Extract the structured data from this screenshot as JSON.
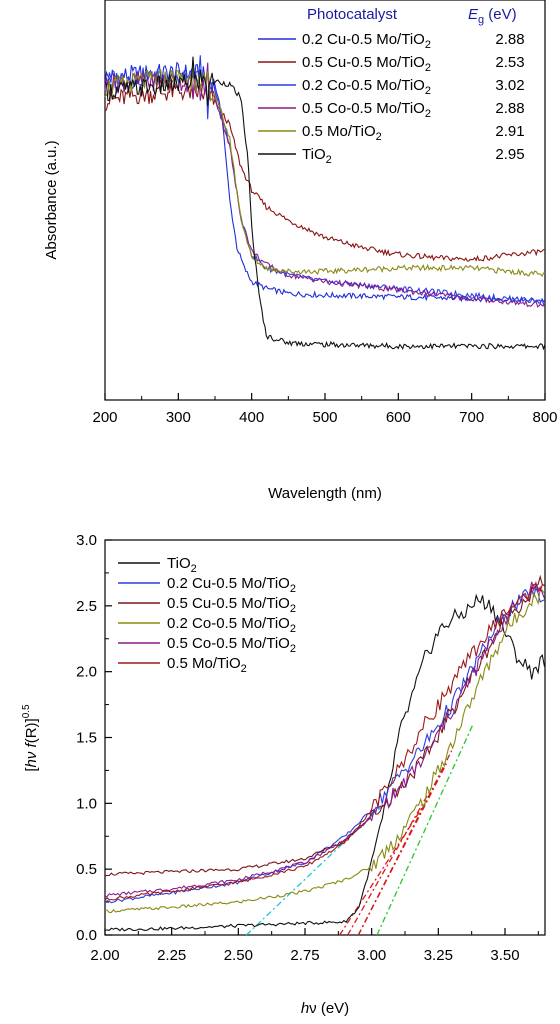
{
  "chart_data": [
    {
      "type": "line",
      "xlabel": "Wavelength (nm)",
      "ylabel": "Absorbance (a.u.)",
      "xlim": [
        200,
        800
      ],
      "xticks": [
        "200",
        "300",
        "400",
        "500",
        "600",
        "700",
        "800"
      ],
      "y_ticks_shown": false,
      "grid": false,
      "legend": {
        "placement": "top-right",
        "header_left": "Photocatalyst",
        "header_right_symbol": "E",
        "header_right_sub": "g",
        "header_right_unit": " (eV)",
        "header_color": "#1a1aa0"
      },
      "series": [
        {
          "name": "0.2 Cu-0.5 Mo/TiO",
          "sub": "2",
          "eg": "2.88",
          "color": "#1f2fd8",
          "x": [
            200,
            250,
            300,
            330,
            350,
            360,
            370,
            380,
            390,
            400,
            420,
            450,
            500,
            600,
            700,
            800
          ],
          "y": [
            0.86,
            0.87,
            0.875,
            0.87,
            0.84,
            0.74,
            0.5,
            0.36,
            0.3,
            0.26,
            0.24,
            0.225,
            0.22,
            0.215,
            0.21,
            0.205
          ]
        },
        {
          "name": "0.5 Cu-0.5 Mo/TiO",
          "sub": "2",
          "eg": "2.53",
          "color": "#8a1414",
          "x": [
            200,
            250,
            300,
            330,
            350,
            370,
            385,
            400,
            420,
            450,
            500,
            550,
            600,
            650,
            700,
            800
          ],
          "y": [
            0.79,
            0.81,
            0.82,
            0.815,
            0.79,
            0.72,
            0.6,
            0.53,
            0.48,
            0.44,
            0.39,
            0.36,
            0.34,
            0.33,
            0.325,
            0.35
          ]
        },
        {
          "name": "0.2 Co-0.5 Mo/TiO",
          "sub": "2",
          "eg": "3.02",
          "color": "#2a3fe0",
          "x": [
            200,
            250,
            300,
            330,
            350,
            370,
            385,
            400,
            420,
            450,
            500,
            600,
            700,
            800
          ],
          "y": [
            0.85,
            0.86,
            0.86,
            0.85,
            0.82,
            0.66,
            0.45,
            0.34,
            0.3,
            0.28,
            0.26,
            0.24,
            0.22,
            0.2
          ]
        },
        {
          "name": "0.5 Co-0.5 Mo/TiO",
          "sub": "2",
          "eg": "2.88",
          "color": "#8a1a8e",
          "x": [
            200,
            250,
            300,
            330,
            350,
            370,
            385,
            400,
            420,
            450,
            500,
            600,
            700,
            800
          ],
          "y": [
            0.84,
            0.85,
            0.85,
            0.84,
            0.8,
            0.66,
            0.45,
            0.35,
            0.31,
            0.28,
            0.26,
            0.235,
            0.21,
            0.19
          ]
        },
        {
          "name": "0.5 Mo/TiO",
          "sub": "2",
          "eg": "2.91",
          "color": "#8a8a14",
          "x": [
            200,
            250,
            300,
            330,
            350,
            370,
            385,
            400,
            420,
            450,
            500,
            550,
            600,
            650,
            700,
            800
          ],
          "y": [
            0.83,
            0.85,
            0.86,
            0.85,
            0.81,
            0.68,
            0.45,
            0.33,
            0.3,
            0.29,
            0.29,
            0.295,
            0.3,
            0.3,
            0.3,
            0.28
          ]
        },
        {
          "name": "TiO",
          "sub": "2",
          "eg": "2.95",
          "color": "#111111",
          "x": [
            200,
            250,
            300,
            330,
            350,
            370,
            385,
            395,
            400,
            410,
            420,
            450,
            500,
            600,
            700,
            800
          ],
          "y": [
            0.82,
            0.83,
            0.84,
            0.85,
            0.85,
            0.84,
            0.8,
            0.62,
            0.42,
            0.22,
            0.1,
            0.08,
            0.075,
            0.07,
            0.07,
            0.07
          ]
        }
      ]
    },
    {
      "type": "line",
      "xlabel_italic": "h",
      "xlabel_greek": "ν",
      "xlabel_rest": " (eV)",
      "ylabel_parts": [
        "[",
        "hν f",
        "(R)]",
        "0.5"
      ],
      "xlim": [
        2.0,
        3.65
      ],
      "ylim": [
        0.0,
        3.0
      ],
      "xticks": [
        "2.00",
        "2.25",
        "2.50",
        "2.75",
        "3.00",
        "3.25",
        "3.50"
      ],
      "xtick_values": [
        2.0,
        2.25,
        2.5,
        2.75,
        3.0,
        3.25,
        3.5
      ],
      "yticks": [
        "0.0",
        "0.5",
        "1.0",
        "1.5",
        "2.0",
        "2.5",
        "3.0"
      ],
      "ytick_values": [
        0.0,
        0.5,
        1.0,
        1.5,
        2.0,
        2.5,
        3.0
      ],
      "grid": false,
      "legend": {
        "placement": "top-left"
      },
      "series": [
        {
          "name": "TiO",
          "sub": "2",
          "color": "#111111",
          "x": [
            2.0,
            2.25,
            2.5,
            2.75,
            2.9,
            2.95,
            3.0,
            3.05,
            3.1,
            3.15,
            3.2,
            3.25,
            3.3,
            3.35,
            3.4,
            3.45,
            3.5,
            3.55,
            3.6,
            3.65
          ],
          "y": [
            0.04,
            0.05,
            0.07,
            0.09,
            0.1,
            0.2,
            0.55,
            0.95,
            1.5,
            1.8,
            2.1,
            2.3,
            2.4,
            2.45,
            2.55,
            2.5,
            2.3,
            2.1,
            2.0,
            2.1
          ]
        },
        {
          "name": "0.2 Cu-0.5 Mo/TiO",
          "sub": "2",
          "color": "#2a3fe0",
          "x": [
            2.0,
            2.25,
            2.5,
            2.75,
            2.9,
            3.0,
            3.1,
            3.2,
            3.3,
            3.4,
            3.5,
            3.6,
            3.65
          ],
          "y": [
            0.25,
            0.32,
            0.4,
            0.55,
            0.75,
            0.95,
            1.2,
            1.45,
            1.75,
            2.1,
            2.45,
            2.6,
            2.55
          ]
        },
        {
          "name": "0.5 Cu-0.5 Mo/TiO",
          "sub": "2",
          "color": "#7a1818",
          "x": [
            2.0,
            2.25,
            2.5,
            2.75,
            2.9,
            3.0,
            3.1,
            3.2,
            3.3,
            3.4,
            3.5,
            3.6,
            3.65
          ],
          "y": [
            0.46,
            0.48,
            0.5,
            0.58,
            0.72,
            0.9,
            1.1,
            1.35,
            1.7,
            2.05,
            2.4,
            2.6,
            2.7
          ]
        },
        {
          "name": "0.2 Co-0.5 Mo/TiO",
          "sub": "2",
          "color": "#8a8a14",
          "x": [
            2.0,
            2.25,
            2.5,
            2.75,
            2.9,
            3.0,
            3.1,
            3.2,
            3.3,
            3.4,
            3.5,
            3.6,
            3.65
          ],
          "y": [
            0.18,
            0.21,
            0.25,
            0.33,
            0.42,
            0.52,
            0.75,
            1.05,
            1.45,
            1.9,
            2.3,
            2.55,
            2.6
          ]
        },
        {
          "name": "0.5 Co-0.5 Mo/TiO",
          "sub": "2",
          "color": "#8a1a8e",
          "x": [
            2.0,
            2.25,
            2.5,
            2.75,
            2.9,
            3.0,
            3.1,
            3.2,
            3.3,
            3.4,
            3.5,
            3.6,
            3.65
          ],
          "y": [
            0.3,
            0.35,
            0.42,
            0.55,
            0.72,
            0.9,
            1.1,
            1.35,
            1.7,
            2.05,
            2.4,
            2.65,
            2.6
          ]
        },
        {
          "name": "0.5 Mo/TiO",
          "sub": "2",
          "color": "#a01818",
          "x": [
            2.0,
            2.25,
            2.5,
            2.75,
            2.9,
            3.0,
            3.1,
            3.2,
            3.3,
            3.4,
            3.5,
            3.6,
            3.65
          ],
          "y": [
            0.27,
            0.33,
            0.4,
            0.52,
            0.7,
            0.95,
            1.25,
            1.6,
            1.9,
            2.2,
            2.45,
            2.6,
            2.7
          ]
        }
      ],
      "fit_lines": [
        {
          "color": "#19c6d8",
          "x": [
            2.53,
            3.05
          ],
          "y": [
            0.0,
            1.0
          ]
        },
        {
          "color": "#e01818",
          "x": [
            2.88,
            3.2
          ],
          "y": [
            0.0,
            1.0
          ]
        },
        {
          "color": "#e01818",
          "x": [
            2.91,
            3.22
          ],
          "y": [
            0.0,
            1.1
          ]
        },
        {
          "color": "#e01818",
          "x": [
            2.95,
            3.28
          ],
          "y": [
            0.0,
            1.3
          ]
        },
        {
          "color": "#d01818",
          "x": [
            2.95,
            3.3
          ],
          "y": [
            0.0,
            1.4
          ]
        },
        {
          "color": "#28c828",
          "x": [
            3.02,
            3.38
          ],
          "y": [
            0.0,
            1.6
          ]
        }
      ]
    }
  ]
}
